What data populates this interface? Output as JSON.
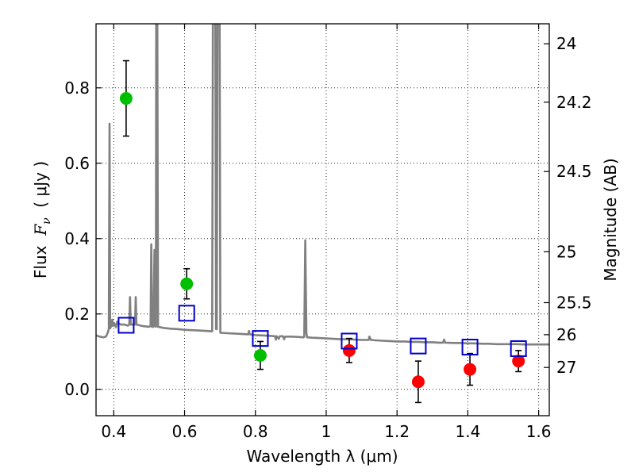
{
  "chart_data": {
    "type": "scatter",
    "xlabel": "Wavelength  λ (μm)",
    "ylabel": "Flux  F_ν  ( μJy )",
    "ylabel_parts": {
      "prefix": "Flux  ",
      "var": "F",
      "sub": "ν",
      "unit": "  ( μJy )"
    },
    "y2label": "Magnitude (AB)",
    "xlim": [
      0.35,
      1.63
    ],
    "ylim": [
      -0.07,
      0.97
    ],
    "x_ticks": [
      0.4,
      0.6,
      0.8,
      1.0,
      1.2,
      1.4,
      1.6
    ],
    "x_tick_labels": [
      "0.4",
      "0.6",
      "0.8",
      "1",
      "1.2",
      "1.4",
      "1.6"
    ],
    "y_ticks": [
      0.0,
      0.2,
      0.4,
      0.6,
      0.8
    ],
    "y_tick_labels": [
      "0.0",
      "0.2",
      "0.4",
      "0.6",
      "0.8"
    ],
    "y2_ticks": [
      {
        "label": "24",
        "flux": 0.917
      },
      {
        "label": "24.2",
        "flux": 0.762
      },
      {
        "label": "24.5",
        "flux": 0.578
      },
      {
        "label": "25",
        "flux": 0.365
      },
      {
        "label": "25.5",
        "flux": 0.23
      },
      {
        "label": "26",
        "flux": 0.145
      },
      {
        "label": "27",
        "flux": 0.058
      }
    ],
    "grid": true,
    "series": [
      {
        "marker": "circle",
        "color": "#00bf00",
        "points": [
          {
            "x": 0.435,
            "y": 0.772,
            "err": 0.1
          },
          {
            "x": 0.606,
            "y": 0.28,
            "err": 0.04
          },
          {
            "x": 0.814,
            "y": 0.09,
            "err": 0.037
          }
        ]
      },
      {
        "marker": "circle",
        "color": "#ff0000",
        "points": [
          {
            "x": 1.065,
            "y": 0.103,
            "err": 0.032
          },
          {
            "x": 1.26,
            "y": 0.02,
            "err": 0.055
          },
          {
            "x": 1.406,
            "y": 0.053,
            "err": 0.042
          },
          {
            "x": 1.543,
            "y": 0.075,
            "err": 0.028
          }
        ]
      },
      {
        "marker": "open-square",
        "color": "#0000cc",
        "points": [
          {
            "x": 0.435,
            "y": 0.17
          },
          {
            "x": 0.606,
            "y": 0.202
          },
          {
            "x": 0.814,
            "y": 0.135
          },
          {
            "x": 1.065,
            "y": 0.128
          },
          {
            "x": 1.26,
            "y": 0.115
          },
          {
            "x": 1.406,
            "y": 0.112
          },
          {
            "x": 1.543,
            "y": 0.108
          }
        ]
      }
    ],
    "spectrum": {
      "color": "#808080",
      "points": [
        [
          0.35,
          0.143
        ],
        [
          0.36,
          0.14
        ],
        [
          0.37,
          0.138
        ],
        [
          0.378,
          0.14
        ],
        [
          0.383,
          0.15
        ],
        [
          0.386,
          0.16
        ],
        [
          0.388,
          0.705
        ],
        [
          0.39,
          0.162
        ],
        [
          0.394,
          0.17
        ],
        [
          0.396,
          0.185
        ],
        [
          0.398,
          0.168
        ],
        [
          0.402,
          0.175
        ],
        [
          0.406,
          0.165
        ],
        [
          0.41,
          0.18
        ],
        [
          0.414,
          0.175
        ],
        [
          0.42,
          0.172
        ],
        [
          0.43,
          0.172
        ],
        [
          0.44,
          0.169
        ],
        [
          0.444,
          0.172
        ],
        [
          0.446,
          0.245
        ],
        [
          0.448,
          0.172
        ],
        [
          0.456,
          0.172
        ],
        [
          0.46,
          0.172
        ],
        [
          0.462,
          0.245
        ],
        [
          0.464,
          0.172
        ],
        [
          0.48,
          0.168
        ],
        [
          0.5,
          0.166
        ],
        [
          0.504,
          0.168
        ],
        [
          0.506,
          0.385
        ],
        [
          0.508,
          0.166
        ],
        [
          0.512,
          0.166
        ],
        [
          0.515,
          0.37
        ],
        [
          0.517,
          0.168
        ],
        [
          0.519,
          0.166
        ],
        [
          0.52,
          0.97
        ],
        [
          0.523,
          0.97
        ],
        [
          0.525,
          0.166
        ],
        [
          0.54,
          0.163
        ],
        [
          0.56,
          0.161
        ],
        [
          0.58,
          0.16
        ],
        [
          0.6,
          0.158
        ],
        [
          0.62,
          0.157
        ],
        [
          0.64,
          0.156
        ],
        [
          0.66,
          0.155
        ],
        [
          0.675,
          0.154
        ],
        [
          0.678,
          0.154
        ],
        [
          0.68,
          0.97
        ],
        [
          0.687,
          0.97
        ],
        [
          0.689,
          0.16
        ],
        [
          0.691,
          0.16
        ],
        [
          0.693,
          0.97
        ],
        [
          0.699,
          0.97
        ],
        [
          0.701,
          0.15
        ],
        [
          0.72,
          0.149
        ],
        [
          0.74,
          0.148
        ],
        [
          0.76,
          0.147
        ],
        [
          0.78,
          0.146
        ],
        [
          0.782,
          0.155
        ],
        [
          0.784,
          0.146
        ],
        [
          0.8,
          0.144
        ],
        [
          0.82,
          0.143
        ],
        [
          0.84,
          0.142
        ],
        [
          0.855,
          0.141
        ],
        [
          0.858,
          0.132
        ],
        [
          0.86,
          0.141
        ],
        [
          0.866,
          0.134
        ],
        [
          0.869,
          0.141
        ],
        [
          0.878,
          0.141
        ],
        [
          0.881,
          0.133
        ],
        [
          0.884,
          0.14
        ],
        [
          0.9,
          0.14
        ],
        [
          0.92,
          0.139
        ],
        [
          0.936,
          0.138
        ],
        [
          0.938,
          0.14
        ],
        [
          0.941,
          0.395
        ],
        [
          0.944,
          0.15
        ],
        [
          0.946,
          0.138
        ],
        [
          0.96,
          0.137
        ],
        [
          0.98,
          0.136
        ],
        [
          1.0,
          0.135
        ],
        [
          1.02,
          0.134
        ],
        [
          1.04,
          0.133
        ],
        [
          1.06,
          0.133
        ],
        [
          1.08,
          0.132
        ],
        [
          1.1,
          0.131
        ],
        [
          1.12,
          0.131
        ],
        [
          1.122,
          0.14
        ],
        [
          1.126,
          0.131
        ],
        [
          1.14,
          0.13
        ],
        [
          1.16,
          0.129
        ],
        [
          1.18,
          0.128
        ],
        [
          1.2,
          0.127
        ],
        [
          1.22,
          0.127
        ],
        [
          1.24,
          0.126
        ],
        [
          1.26,
          0.126
        ],
        [
          1.28,
          0.125
        ],
        [
          1.3,
          0.125
        ],
        [
          1.32,
          0.124
        ],
        [
          1.33,
          0.124
        ],
        [
          1.333,
          0.132
        ],
        [
          1.336,
          0.124
        ],
        [
          1.36,
          0.123
        ],
        [
          1.38,
          0.123
        ],
        [
          1.4,
          0.122
        ],
        [
          1.42,
          0.122
        ],
        [
          1.44,
          0.121
        ],
        [
          1.46,
          0.121
        ],
        [
          1.48,
          0.12
        ],
        [
          1.5,
          0.12
        ],
        [
          1.52,
          0.12
        ],
        [
          1.54,
          0.12
        ],
        [
          1.56,
          0.119
        ],
        [
          1.58,
          0.119
        ],
        [
          1.6,
          0.119
        ],
        [
          1.63,
          0.119
        ]
      ]
    }
  }
}
